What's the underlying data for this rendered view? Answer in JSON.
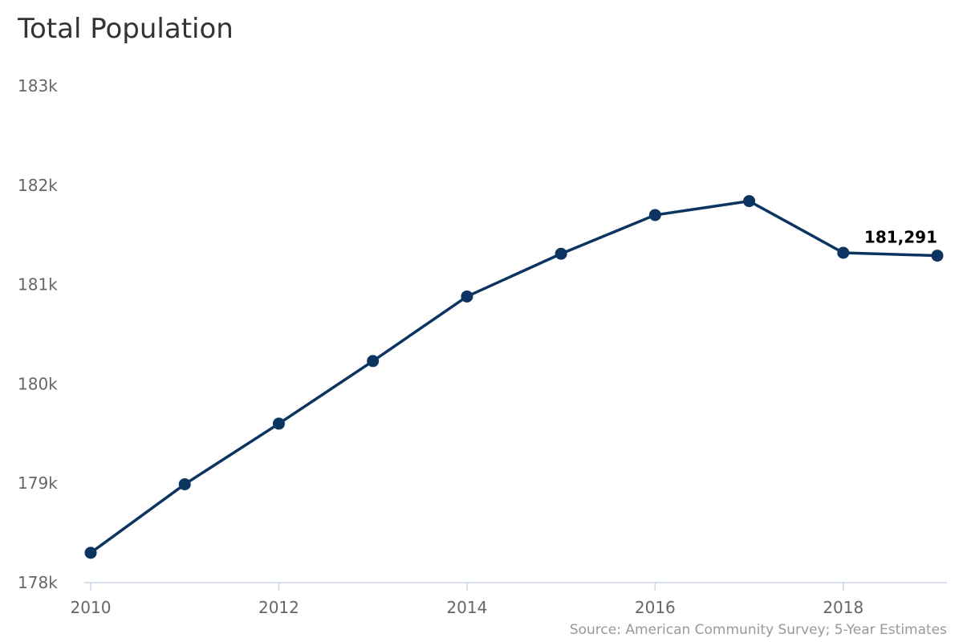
{
  "chart_data": {
    "type": "line",
    "title": "Total Population",
    "xlabel": "",
    "ylabel": "",
    "x": [
      2010,
      2011,
      2012,
      2013,
      2014,
      2015,
      2016,
      2017,
      2018,
      2019
    ],
    "series": [
      {
        "values": [
          178300,
          178990,
          179600,
          180230,
          180880,
          181310,
          181700,
          181840,
          181320,
          181291
        ],
        "color": "#0b3560"
      }
    ],
    "ylim": [
      178000,
      183000
    ],
    "xlim": [
      2010,
      2019
    ],
    "y_ticks": [
      178000,
      179000,
      180000,
      181000,
      182000,
      183000
    ],
    "y_tick_labels": [
      "178k",
      "179k",
      "180k",
      "181k",
      "182k",
      "183k"
    ],
    "x_ticks": [
      2010,
      2012,
      2014,
      2016,
      2018
    ],
    "x_tick_labels": [
      "2010",
      "2012",
      "2014",
      "2016",
      "2018"
    ],
    "data_labels": [
      {
        "index": 9,
        "text": "181,291"
      }
    ],
    "grid": false,
    "legend": "none"
  },
  "source": "Source: American Community Survey; 5-Year Estimates",
  "colors": {
    "line": "#0b3560",
    "axis": "#ccd6eb",
    "title": "#333333",
    "tick": "#666666",
    "source": "#999999"
  }
}
